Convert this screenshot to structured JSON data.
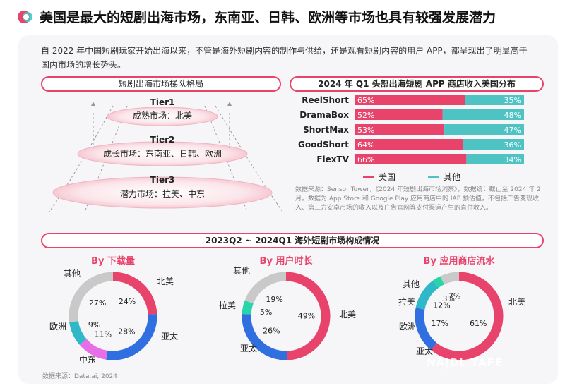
{
  "header": {
    "title": "美国是最大的短剧出海市场，东南亚、日韩、欧洲等市场也具有较强发展潜力"
  },
  "intro": "自 2022 年中国短剧玩家开始出海以来，不管是海外短剧内容的制作与供给，还是观看短剧内容的用户 APP，都呈现出了明显高于国内市场的增长势头。",
  "colors": {
    "accent": "#e8436a",
    "us": "#e8436a",
    "other": "#4fc3c3",
    "asia_pacific": "#2f6fe0",
    "europe": "#2fb8c8",
    "middle_east": "#e76ee6",
    "others_grey": "#c9c9c9",
    "latam": "#27d6a8"
  },
  "tier_section": {
    "title": "短剧出海市场梯队格局",
    "tiers": [
      {
        "name": "Tier1",
        "label": "成熟市场：北美"
      },
      {
        "name": "Tier2",
        "label": "成长市场：东南亚、日韩、欧洲"
      },
      {
        "name": "Tier3",
        "label": "潜力市场：拉美、中东"
      }
    ]
  },
  "revenue_section": {
    "title": "2024 年 Q1 头部出海短剧 APP 商店收入美国分布",
    "source": "数据来源：Sensor Tower，《2024 年短剧出海市场洞察》，数据统计截止至 2024 年 2 月。数据为 App Store 和 Google Play 应用商店中的 IAP 预估值，不包括广告变现收入、第三方安卓市场的收入以及广告官网等支付渠道产生的直付收入。"
  },
  "composition_section": {
    "title": "2023Q2 ~ 2024Q1 海外短剧市场构成情况",
    "source": "数据来源：Data.ai, 2024"
  },
  "watermark": "NA|DL TAFE",
  "chart_data": [
    {
      "type": "bar",
      "stacked": true,
      "orientation": "horizontal",
      "categories": [
        "ReelShort",
        "DramaBox",
        "ShortMax",
        "GoodShort",
        "FlexTV"
      ],
      "series": [
        {
          "name": "美国",
          "values": [
            65,
            52,
            53,
            64,
            66
          ],
          "labels": [
            "65%",
            "52%",
            "53%",
            "64%",
            "66%"
          ]
        },
        {
          "name": "其他",
          "values": [
            35,
            48,
            47,
            36,
            34
          ],
          "labels": [
            "35%",
            "48%",
            "47%",
            "36%",
            "34%"
          ]
        }
      ],
      "legend": "bottom",
      "xlim": [
        0,
        100
      ]
    },
    {
      "type": "pie",
      "donut": true,
      "title": "By 下载量",
      "slices": [
        {
          "name": "北美",
          "value": 24,
          "label": "24%",
          "color": "#e8436a"
        },
        {
          "name": "亚太",
          "value": 28,
          "label": "28%",
          "color": "#2f6fe0"
        },
        {
          "name": "中东",
          "value": 11,
          "label": "11%",
          "color": "#e76ee6"
        },
        {
          "name": "欧洲",
          "value": 9,
          "label": "9%",
          "color": "#2fb8c8"
        },
        {
          "name": "其他",
          "value": 27,
          "label": "27%",
          "color": "#c9c9c9"
        }
      ]
    },
    {
      "type": "pie",
      "donut": true,
      "title": "By 用户时长",
      "slices": [
        {
          "name": "北美",
          "value": 49,
          "label": "49%",
          "color": "#e8436a"
        },
        {
          "name": "亚太",
          "value": 26,
          "label": "26%",
          "color": "#2f6fe0"
        },
        {
          "name": "拉美",
          "value": 5,
          "label": "5%",
          "color": "#27d6a8"
        },
        {
          "name": "其他",
          "value": 19,
          "label": "19%",
          "color": "#c9c9c9"
        }
      ]
    },
    {
      "type": "pie",
      "donut": true,
      "title": "By 应用商店流水",
      "slices": [
        {
          "name": "北美",
          "value": 61,
          "label": "61%",
          "color": "#e8436a"
        },
        {
          "name": "亚太",
          "value": 17,
          "label": "17%",
          "color": "#2f6fe0"
        },
        {
          "name": "欧洲",
          "value": 12,
          "label": "12%",
          "color": "#2fb8c8"
        },
        {
          "name": "拉美",
          "value": 3,
          "label": "3%",
          "color": "#27d6a8"
        },
        {
          "name": "其他",
          "value": 7,
          "label": "7%",
          "color": "#c9c9c9"
        }
      ]
    }
  ]
}
